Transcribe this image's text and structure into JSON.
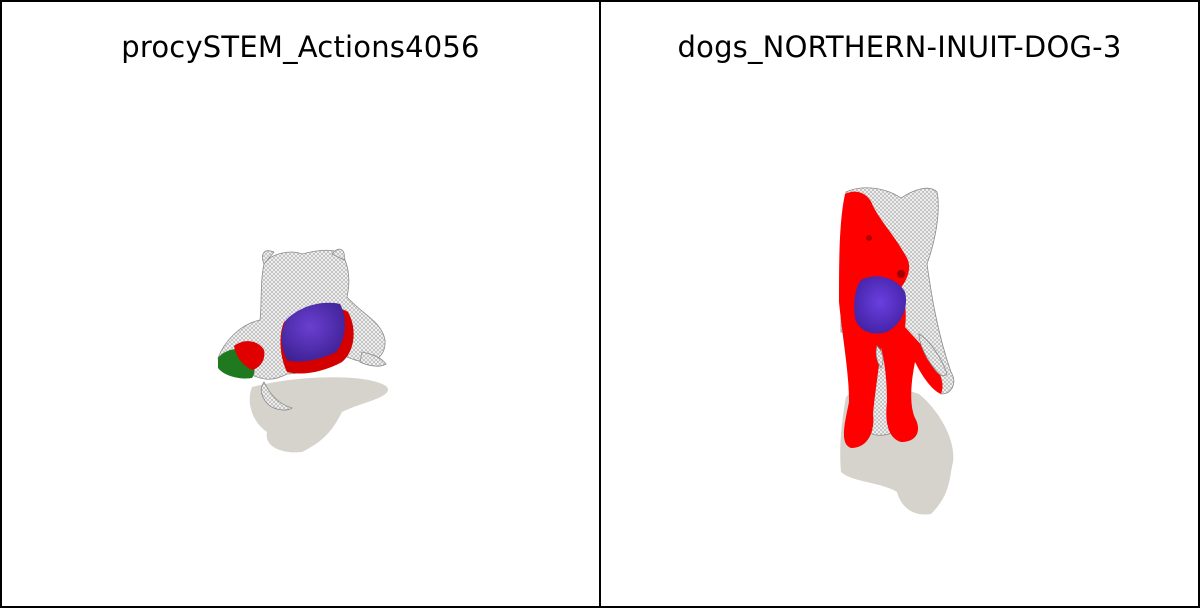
{
  "panels": [
    {
      "title": "procySTEM_Actions4056",
      "subject_icon": "crouching-procyonid-mesh",
      "colors": {
        "mesh": "#d8d8d8",
        "overlay_red": "#e00000",
        "overlay_purple": "#5a2bb0",
        "overlay_green": "#1f7a1f",
        "shadow": "#d6d3cc"
      }
    },
    {
      "title": "dogs_NORTHERN-INUIT-DOG-3",
      "subject_icon": "standing-dog-mesh",
      "colors": {
        "mesh": "#d8d8d8",
        "overlay_red": "#ff0000",
        "overlay_purple": "#4a2bbf",
        "shadow": "#d6d3cc"
      }
    }
  ]
}
